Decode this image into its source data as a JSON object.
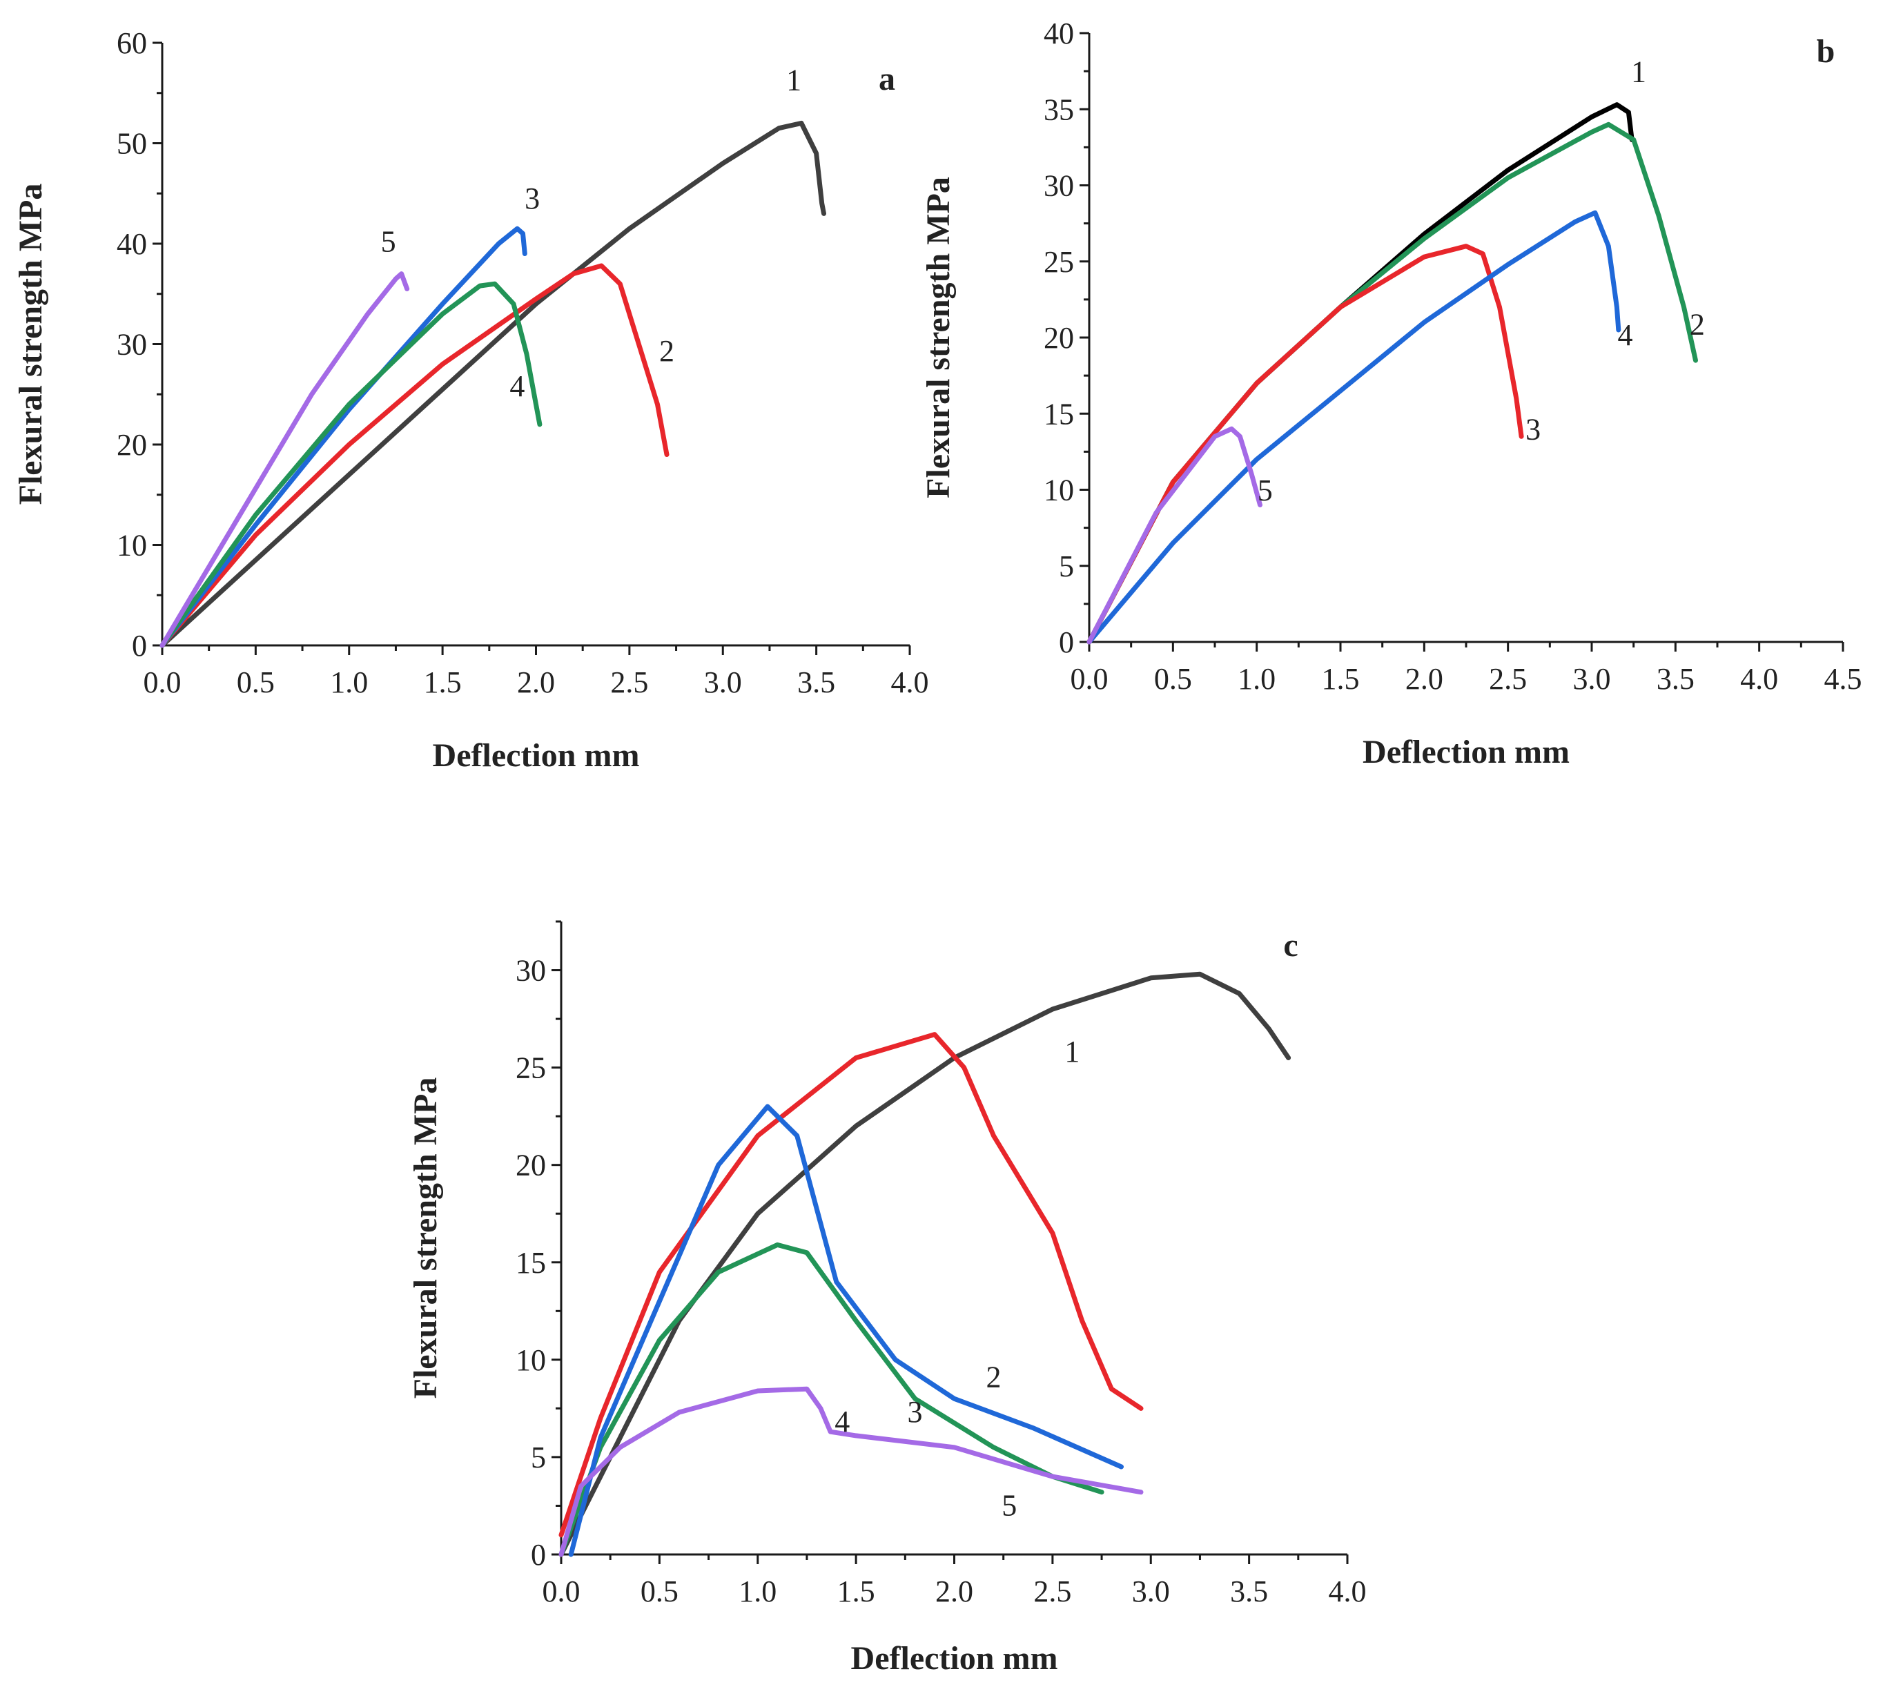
{
  "colors": {
    "1": "#3f3f3f",
    "1b": "#000000",
    "2": "#e8262b",
    "3": "#1f68d8",
    "4": "#229457",
    "5": "#a46ae6"
  },
  "chart_data": [
    {
      "type": "line",
      "panel_label": "a",
      "xlabel": "Deflection mm",
      "ylabel": "Flexural strength MPa",
      "xlim": [
        0,
        4.0
      ],
      "ylim": [
        0,
        60
      ],
      "xticks": [
        "0.0",
        "0.5",
        "1.0",
        "1.5",
        "2.0",
        "2.5",
        "3.0",
        "3.5",
        "4.0"
      ],
      "yticks": [
        "0",
        "10",
        "20",
        "30",
        "40",
        "50",
        "60"
      ],
      "series": [
        {
          "name": "1",
          "color": "1",
          "label_at": [
            3.38,
            55.3
          ],
          "x": [
            0,
            0.5,
            1.0,
            1.5,
            2.0,
            2.5,
            3.0,
            3.3,
            3.42,
            3.5,
            3.53,
            3.54
          ],
          "y": [
            0,
            8.5,
            17,
            25.5,
            34,
            41.5,
            48,
            51.5,
            52,
            49,
            44,
            43
          ]
        },
        {
          "name": "2",
          "color": "2",
          "label_at": [
            2.7,
            28.3
          ],
          "x": [
            0,
            0.5,
            1.0,
            1.5,
            2.0,
            2.2,
            2.35,
            2.45,
            2.55,
            2.65,
            2.7
          ],
          "y": [
            0,
            11,
            20,
            28,
            34.5,
            37,
            37.8,
            36,
            30,
            24,
            19
          ]
        },
        {
          "name": "3",
          "color": "3",
          "label_at": [
            1.98,
            43.5
          ],
          "x": [
            0,
            0.5,
            1.0,
            1.5,
            1.8,
            1.9,
            1.93,
            1.94
          ],
          "y": [
            0,
            12,
            23.5,
            34,
            40,
            41.5,
            41,
            39
          ]
        },
        {
          "name": "4",
          "color": "4",
          "label_at": [
            1.9,
            24.8
          ],
          "x": [
            0,
            0.5,
            1.0,
            1.5,
            1.7,
            1.78,
            1.88,
            1.95,
            2.0,
            2.02
          ],
          "y": [
            0,
            13,
            24,
            33,
            35.8,
            36,
            34,
            29,
            24,
            22
          ]
        },
        {
          "name": "5",
          "color": "5",
          "label_at": [
            1.21,
            39.2
          ],
          "x": [
            0,
            0.4,
            0.8,
            1.1,
            1.25,
            1.28,
            1.31
          ],
          "y": [
            0,
            12.5,
            25,
            33,
            36.5,
            37,
            35.5
          ]
        }
      ]
    },
    {
      "type": "line",
      "panel_label": "b",
      "xlabel": "Deflection mm",
      "ylabel": "Flexural strength MPa",
      "xlim": [
        0,
        4.5
      ],
      "ylim": [
        0,
        40
      ],
      "xticks": [
        "0.0",
        "0.5",
        "1.0",
        "1.5",
        "2.0",
        "2.5",
        "3.0",
        "3.5",
        "4.0",
        "4.5"
      ],
      "yticks": [
        "0",
        "5",
        "10",
        "15",
        "20",
        "25",
        "30",
        "35",
        "40"
      ],
      "series": [
        {
          "name": "1",
          "color": "1b",
          "label_at": [
            3.28,
            36.8
          ],
          "x": [
            0,
            0.5,
            1.0,
            1.5,
            2.0,
            2.5,
            3.0,
            3.15,
            3.22,
            3.24
          ],
          "y": [
            0,
            10.5,
            17,
            22,
            26.8,
            31,
            34.5,
            35.3,
            34.8,
            33
          ]
        },
        {
          "name": "2",
          "color": "4",
          "label_at": [
            3.63,
            20.2
          ],
          "x": [
            0,
            0.5,
            1.0,
            1.5,
            2.0,
            2.5,
            3.0,
            3.1,
            3.25,
            3.4,
            3.55,
            3.62
          ],
          "y": [
            0,
            10.5,
            17,
            22,
            26.5,
            30.5,
            33.5,
            34,
            33,
            28,
            22,
            18.5
          ]
        },
        {
          "name": "3",
          "color": "2",
          "label_at": [
            2.65,
            13.3
          ],
          "x": [
            0,
            0.5,
            1.0,
            1.5,
            2.0,
            2.25,
            2.35,
            2.45,
            2.55,
            2.58
          ],
          "y": [
            0,
            10.5,
            17,
            22,
            25.3,
            26,
            25.5,
            22,
            16,
            13.5
          ]
        },
        {
          "name": "4",
          "color": "3",
          "label_at": [
            3.2,
            19.5
          ],
          "x": [
            0,
            0.5,
            1.0,
            1.5,
            2.0,
            2.5,
            2.9,
            3.02,
            3.1,
            3.15,
            3.16
          ],
          "y": [
            0,
            6.5,
            12,
            16.5,
            21,
            24.8,
            27.6,
            28.2,
            26,
            22,
            20.5
          ]
        },
        {
          "name": "5",
          "color": "5",
          "label_at": [
            1.05,
            9.3
          ],
          "x": [
            0,
            0.4,
            0.75,
            0.85,
            0.9,
            0.97,
            1.02
          ],
          "y": [
            0,
            8.5,
            13.5,
            14,
            13.5,
            11,
            9
          ]
        }
      ]
    },
    {
      "type": "line",
      "panel_label": "c",
      "xlabel": "Deflection mm",
      "ylabel": "Flexural strength MPa",
      "xlim": [
        0,
        4.0
      ],
      "ylim": [
        0,
        32.5
      ],
      "xticks": [
        "0.0",
        "0.5",
        "1.0",
        "1.5",
        "2.0",
        "2.5",
        "3.0",
        "3.5",
        "4.0"
      ],
      "yticks": [
        "0",
        "5",
        "10",
        "15",
        "20",
        "25",
        "30"
      ],
      "series": [
        {
          "name": "1",
          "color": "1",
          "label_at": [
            2.6,
            25.3
          ],
          "x": [
            0,
            0.3,
            0.6,
            1.0,
            1.5,
            2.0,
            2.5,
            3.0,
            3.25,
            3.45,
            3.6,
            3.7
          ],
          "y": [
            0,
            6,
            12,
            17.5,
            22,
            25.5,
            28,
            29.6,
            29.8,
            28.8,
            27,
            25.5
          ]
        },
        {
          "name": "2",
          "color": "2",
          "label_at": [
            2.2,
            8.6
          ],
          "x": [
            0,
            0.2,
            0.5,
            1.0,
            1.5,
            1.9,
            2.05,
            2.2,
            2.5,
            2.65,
            2.8,
            2.95
          ],
          "y": [
            1,
            7,
            14.5,
            21.5,
            25.5,
            26.7,
            25,
            21.5,
            16.5,
            12,
            8.5,
            7.5
          ]
        },
        {
          "name": "3",
          "color": "4",
          "label_at": [
            1.8,
            6.8
          ],
          "x": [
            0,
            0.2,
            0.5,
            0.8,
            1.1,
            1.25,
            1.5,
            1.8,
            2.2,
            2.5,
            2.75
          ],
          "y": [
            0,
            5.5,
            11,
            14.5,
            15.9,
            15.5,
            12,
            8,
            5.5,
            4,
            3.2
          ]
        },
        {
          "name": "4",
          "color": "3",
          "label_at": [
            1.43,
            6.3
          ],
          "x": [
            0.05,
            0.2,
            0.5,
            0.8,
            1.05,
            1.2,
            1.4,
            1.7,
            2.0,
            2.4,
            2.85
          ],
          "y": [
            0,
            6,
            13,
            20,
            23,
            21.5,
            14,
            10,
            8,
            6.5,
            4.5
          ]
        },
        {
          "name": "5",
          "color": "5",
          "label_at": [
            2.28,
            2.0
          ],
          "x": [
            0,
            0.1,
            0.3,
            0.6,
            1.0,
            1.25,
            1.32,
            1.37,
            1.5,
            2.0,
            2.5,
            2.95
          ],
          "y": [
            0,
            3.5,
            5.5,
            7.3,
            8.4,
            8.5,
            7.5,
            6.3,
            6.1,
            5.5,
            4,
            3.2
          ]
        }
      ]
    }
  ]
}
